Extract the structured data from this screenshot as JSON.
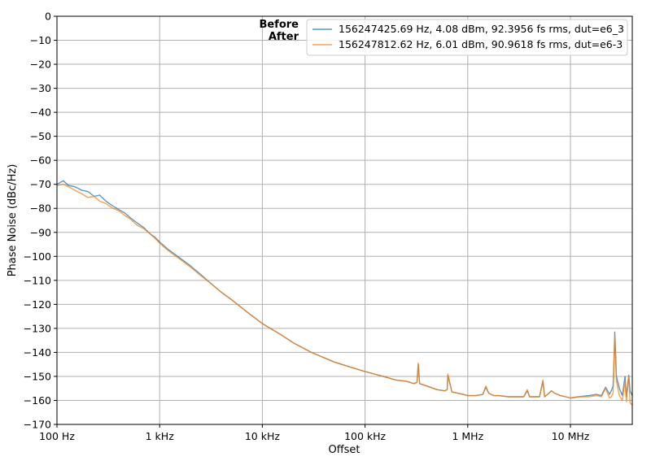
{
  "chart_data": {
    "type": "line",
    "title": "",
    "xlabel": "Offset",
    "ylabel": "Phase Noise (dBc/Hz)",
    "x_scale": "log",
    "xlim": [
      100,
      40000000
    ],
    "ylim": [
      -170,
      0
    ],
    "grid": true,
    "legend_position": "top-right",
    "x_ticks": [
      {
        "value": 100,
        "label": "100 Hz"
      },
      {
        "value": 1000,
        "label": "1 kHz"
      },
      {
        "value": 10000,
        "label": "10 kHz"
      },
      {
        "value": 100000,
        "label": "100 kHz"
      },
      {
        "value": 1000000,
        "label": "1 MHz"
      },
      {
        "value": 10000000,
        "label": "10 MHz"
      }
    ],
    "y_ticks": [
      0,
      -10,
      -20,
      -30,
      -40,
      -50,
      -60,
      -70,
      -80,
      -90,
      -100,
      -110,
      -120,
      -130,
      -140,
      -150,
      -160,
      -170
    ],
    "annotations": [
      "Before",
      "After"
    ],
    "series": [
      {
        "name": "156247425.69 Hz, 4.08 dBm, 92.3956 fs rms, dut=e6_3",
        "color": "#1f77b4",
        "x": [
          100,
          115,
          130,
          150,
          175,
          200,
          230,
          260,
          300,
          350,
          400,
          460,
          520,
          600,
          700,
          800,
          900,
          1000,
          1200,
          1500,
          2000,
          2500,
          3000,
          4000,
          5000,
          7000,
          10000,
          15000,
          20000,
          30000,
          50000,
          70000,
          100000,
          150000,
          200000,
          250000,
          300000,
          320000,
          330000,
          340000,
          400000,
          500000,
          600000,
          630000,
          640000,
          700000,
          800000,
          900000,
          1000000,
          1200000,
          1400000,
          1500000,
          1600000,
          1800000,
          2000000,
          2500000,
          3000000,
          3500000,
          3800000,
          4000000,
          4500000,
          5000000,
          5400000,
          5600000,
          6000000,
          6500000,
          7000000,
          8000000,
          9000000,
          10000000,
          12000000,
          15000000,
          18000000,
          20000000,
          22000000,
          24000000,
          25000000,
          26000000,
          26500000,
          27000000,
          28000000,
          30000000,
          32000000,
          34000000,
          35000000,
          37000000,
          38000000,
          40000000
        ],
        "y": [
          -70,
          -68.5,
          -70.5,
          -71,
          -72.5,
          -73,
          -75,
          -74.5,
          -77,
          -79,
          -80.5,
          -82,
          -84,
          -86,
          -88,
          -90.5,
          -92,
          -94,
          -97,
          -100,
          -104,
          -107.5,
          -110.5,
          -115,
          -118,
          -123,
          -128,
          -132.5,
          -136,
          -140,
          -144,
          -146,
          -148,
          -150,
          -151.5,
          -152,
          -153,
          -152.5,
          -145,
          -153,
          -154,
          -155.5,
          -156,
          -155.5,
          -149.5,
          -156.5,
          -157,
          -157.5,
          -158,
          -158,
          -157.5,
          -154.5,
          -157,
          -158,
          -158,
          -158.5,
          -158.5,
          -158.5,
          -156,
          -158.5,
          -158.5,
          -158.5,
          -152,
          -158.5,
          -157.5,
          -156,
          -157,
          -158,
          -158.5,
          -159,
          -158.5,
          -158,
          -157.5,
          -158,
          -154.5,
          -157.5,
          -156,
          -154,
          -145,
          -131.5,
          -150,
          -155,
          -158,
          -150,
          -158.5,
          -149.5,
          -156,
          -158
        ]
      },
      {
        "name": "156247812.62 Hz, 6.01 dBm, 90.9618 fs rms, dut=e6-3",
        "color": "#ff7f0e",
        "x": [
          100,
          115,
          130,
          150,
          175,
          200,
          230,
          260,
          300,
          350,
          400,
          460,
          520,
          600,
          700,
          800,
          900,
          1000,
          1200,
          1500,
          2000,
          2500,
          3000,
          4000,
          5000,
          7000,
          10000,
          15000,
          20000,
          30000,
          50000,
          70000,
          100000,
          150000,
          200000,
          250000,
          300000,
          320000,
          330000,
          340000,
          400000,
          500000,
          600000,
          630000,
          640000,
          700000,
          800000,
          900000,
          1000000,
          1200000,
          1400000,
          1500000,
          1600000,
          1800000,
          2000000,
          2500000,
          3000000,
          3500000,
          3800000,
          4000000,
          4500000,
          5000000,
          5400000,
          5600000,
          6000000,
          6500000,
          7000000,
          8000000,
          9000000,
          10000000,
          12000000,
          15000000,
          18000000,
          20000000,
          22000000,
          24000000,
          25000000,
          26000000,
          26500000,
          27000000,
          28000000,
          30000000,
          32000000,
          34000000,
          35000000,
          37000000,
          38000000,
          40000000
        ],
        "y": [
          -70.5,
          -70,
          -71,
          -72.5,
          -74,
          -75.5,
          -75,
          -77,
          -78,
          -80,
          -81,
          -83,
          -84.5,
          -87,
          -88.5,
          -90.5,
          -92.5,
          -94.5,
          -97.5,
          -100.5,
          -104.5,
          -108,
          -110.5,
          -115,
          -118,
          -123,
          -128,
          -132.5,
          -136,
          -140,
          -144,
          -146,
          -148,
          -150,
          -151.5,
          -152,
          -153,
          -152.5,
          -144.5,
          -153,
          -154,
          -155.5,
          -156,
          -155.5,
          -149,
          -156.5,
          -157,
          -157.5,
          -158,
          -158,
          -157.5,
          -154,
          -157,
          -158,
          -158,
          -158.5,
          -158.5,
          -158.5,
          -155.5,
          -158.5,
          -158.5,
          -158.5,
          -151.5,
          -158.5,
          -157.5,
          -156,
          -157,
          -158,
          -158.5,
          -159,
          -158.5,
          -158.5,
          -158,
          -158.5,
          -155,
          -159,
          -158.5,
          -157,
          -146,
          -133,
          -152,
          -158,
          -160,
          -152,
          -160.5,
          -150,
          -161,
          -162
        ]
      }
    ]
  }
}
